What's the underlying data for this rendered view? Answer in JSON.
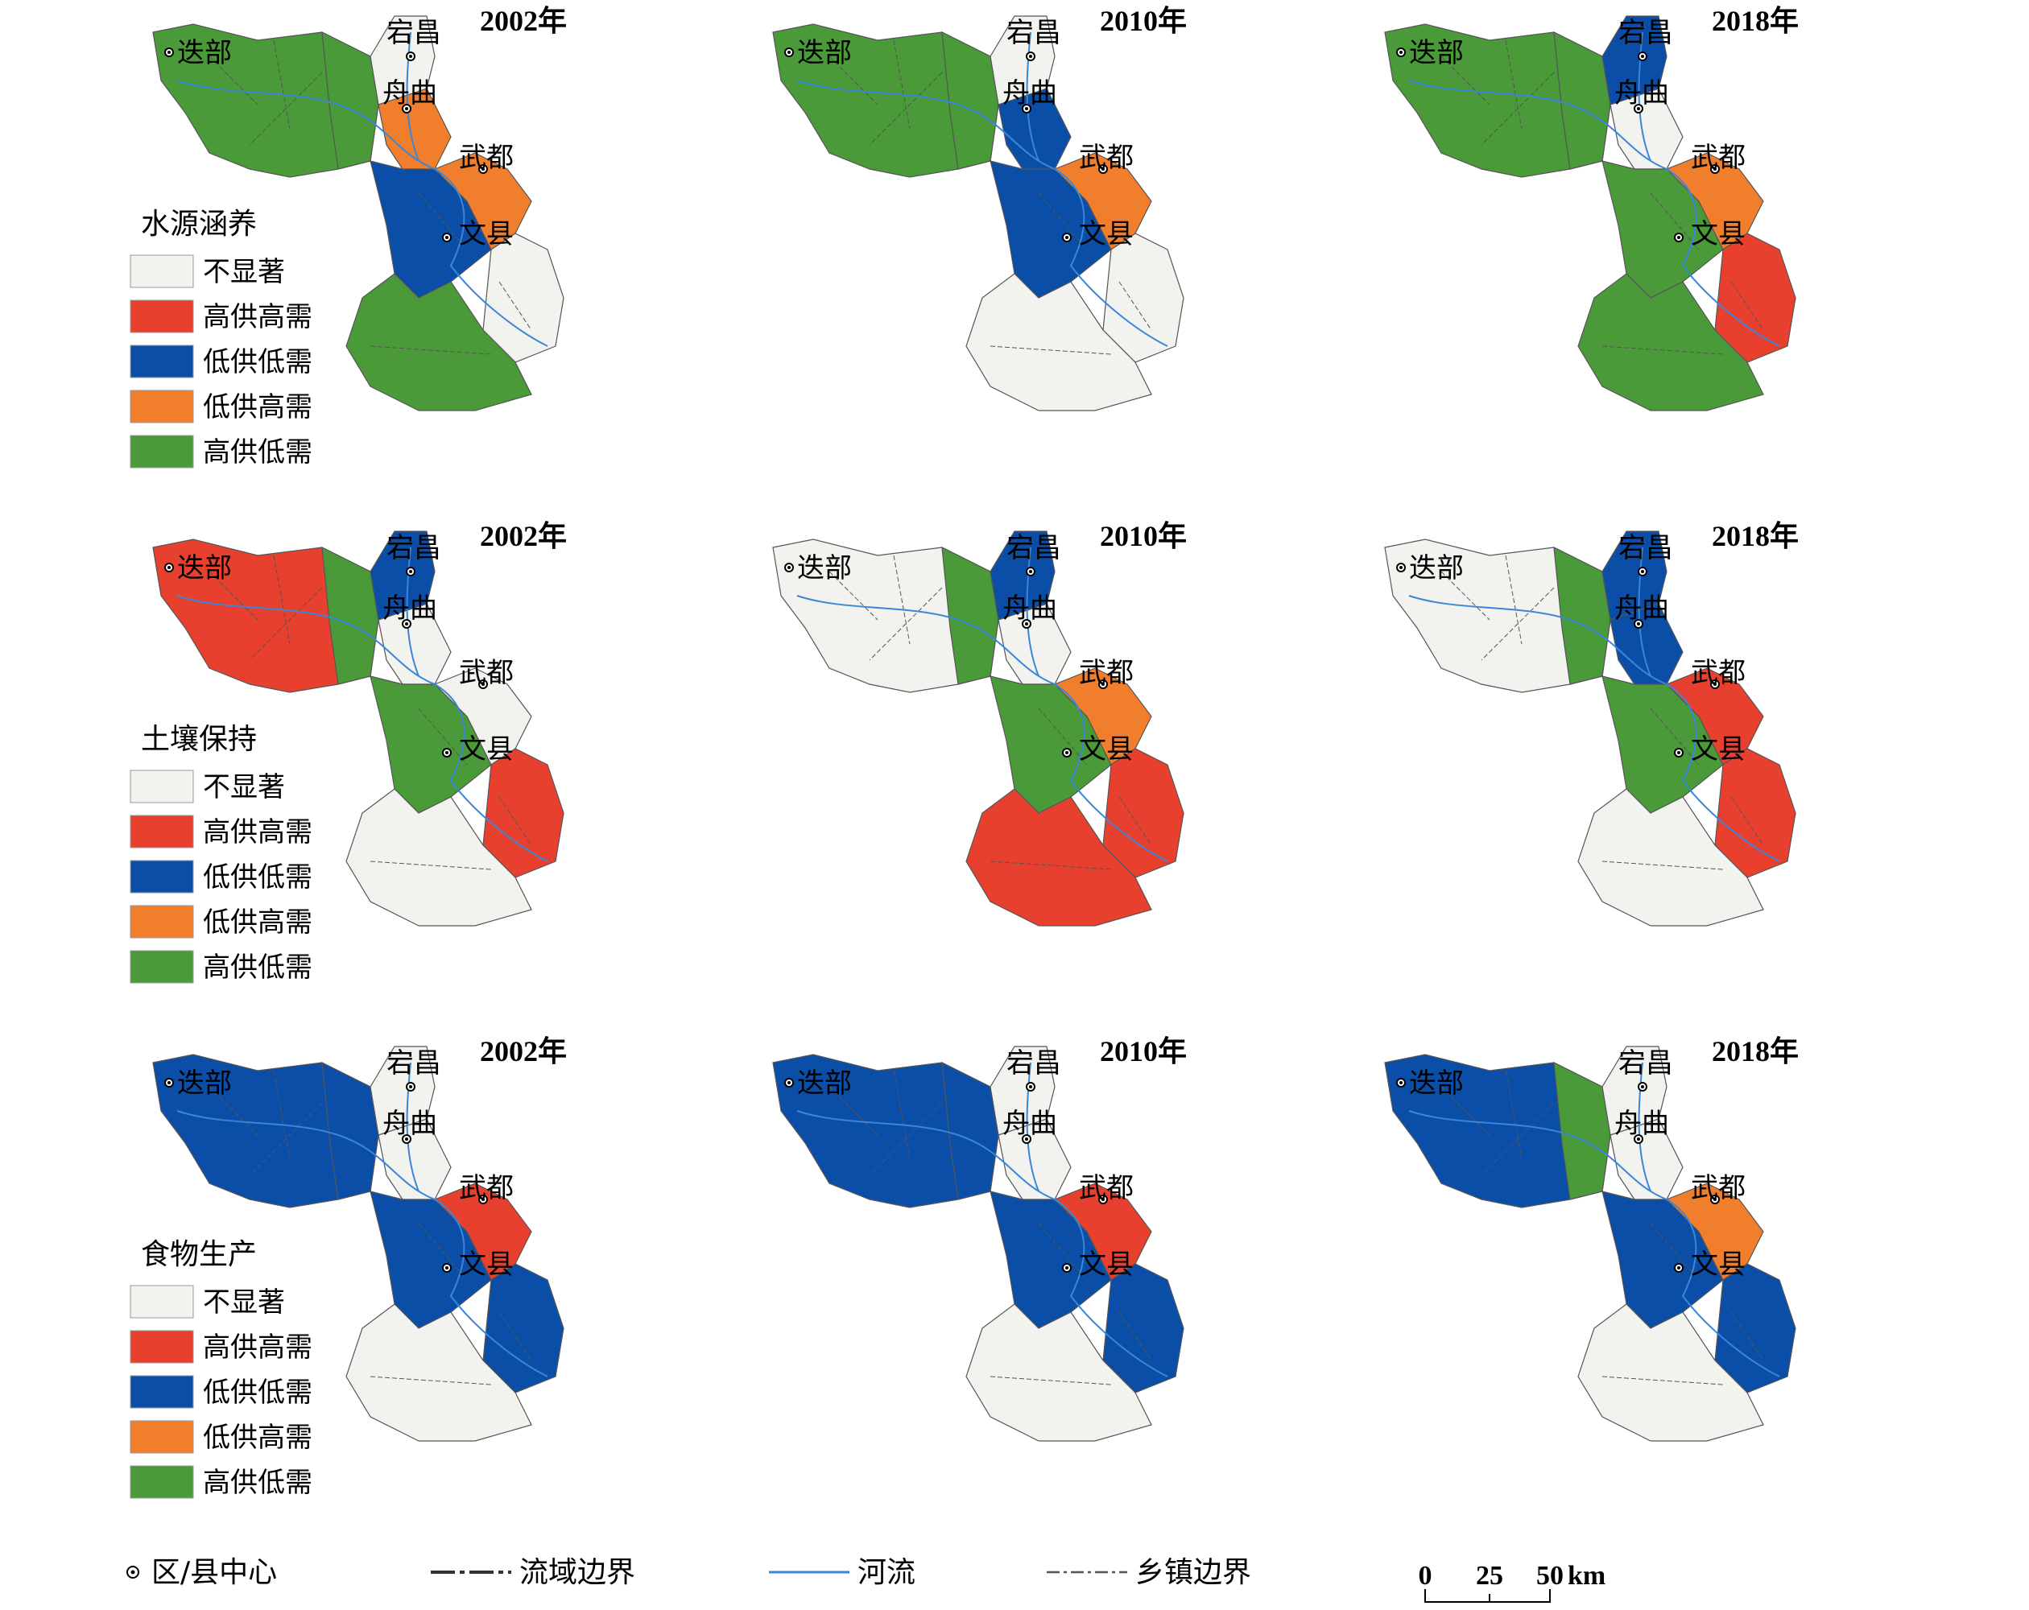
{
  "years": [
    "2002年",
    "2010年",
    "2018年"
  ],
  "cities": {
    "diebu": "迭部",
    "dangchang": "宕昌",
    "zhouqu": "舟曲",
    "wudu": "武都",
    "wenxian": "文县"
  },
  "rows": [
    {
      "legend_title": "水源涵养",
      "panels": [
        {
          "year_index": 0,
          "regions": {
            "west": "low_supply_low_demand",
            "west_east": "not_significant",
            "north_strip": "not_significant",
            "zhouqu_area": "low_supply_high_demand",
            "central": "low_supply_low_demand",
            "wudu_area": "low_supply_high_demand",
            "southeast": "not_significant",
            "south_low": "high_supply_low_demand"
          }
        },
        {
          "year_index": 1,
          "regions": {}
        },
        {
          "year_index": 2,
          "regions": {}
        }
      ]
    },
    {
      "legend_title": "土壤保持",
      "panels": [
        {
          "year_index": 0,
          "regions": {}
        },
        {
          "year_index": 1,
          "regions": {}
        },
        {
          "year_index": 2,
          "regions": {}
        }
      ]
    },
    {
      "legend_title": "食物生产",
      "panels": [
        {
          "year_index": 0,
          "regions": {}
        },
        {
          "year_index": 1,
          "regions": {}
        },
        {
          "year_index": 2,
          "regions": {}
        }
      ]
    }
  ],
  "legend_items": [
    {
      "key": "not_significant",
      "label": "不显著",
      "color": "#f2f2ef"
    },
    {
      "key": "high_supply_high_demand",
      "label": "高供高需",
      "color": "#e8402e"
    },
    {
      "key": "low_supply_low_demand",
      "label": "低供低需",
      "color": "#0b4ea8"
    },
    {
      "key": "low_supply_high_demand",
      "label": "低供高需",
      "color": "#f07e2c"
    },
    {
      "key": "high_supply_low_demand",
      "label": "高供低需",
      "color": "#4a9a3a"
    }
  ],
  "bottom_legend": {
    "county_center": "区/县中心",
    "basin_boundary": "流域边界",
    "river": "河流",
    "township_boundary": "乡镇边界"
  },
  "scale_bar": {
    "ticks": [
      "0",
      "25",
      "50"
    ],
    "unit": "km"
  },
  "colors": {
    "river": "#3a86d9",
    "basin_boundary": "#333333",
    "township_boundary": "#555555"
  }
}
